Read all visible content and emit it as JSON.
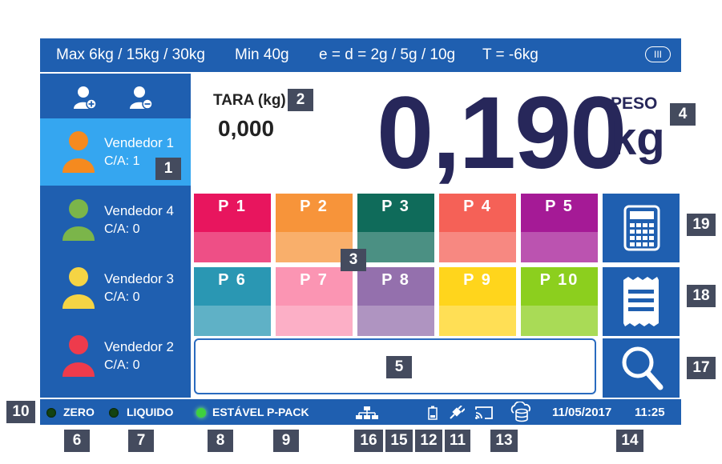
{
  "spec_bar": {
    "max": "Max 6kg / 15kg / 30kg",
    "min": "Min 40g",
    "division": "e = d = 2g / 5g / 10g",
    "tare_limit": "T = -6kg",
    "accuracy_class": "III"
  },
  "sidebar": {
    "add_user_icon": "user-add-icon",
    "remove_user_icon": "user-remove-icon",
    "sellers": [
      {
        "name": "Vendedor 1",
        "ca": "C/A: 1",
        "color": "#f58a1f",
        "active": true
      },
      {
        "name": "Vendedor 4",
        "ca": "C/A: 0",
        "color": "#7bb54a",
        "active": false
      },
      {
        "name": "Vendedor 3",
        "ca": "C/A: 0",
        "color": "#f5d444",
        "active": false
      },
      {
        "name": "Vendedor 2",
        "ca": "C/A: 0",
        "color": "#ee3b4c",
        "active": false
      }
    ]
  },
  "display": {
    "tara_label": "TARA (kg)",
    "tara_value": "0,000",
    "weight": "0,190",
    "peso_label": "PESO",
    "unit": "kg"
  },
  "presets": [
    {
      "label": "P 1",
      "color": "#e8155e"
    },
    {
      "label": "P 2",
      "color": "#f7943a"
    },
    {
      "label": "P 3",
      "color": "#0f6b5a"
    },
    {
      "label": "P 4",
      "color": "#f56157"
    },
    {
      "label": "P 5",
      "color": "#a51a96"
    },
    {
      "label": "P 6",
      "color": "#2a97b3"
    },
    {
      "label": "P 7",
      "color": "#fb95b3"
    },
    {
      "label": "P 8",
      "color": "#9470ad"
    },
    {
      "label": "P 9",
      "color": "#ffd51c"
    },
    {
      "label": "P 10",
      "color": "#8ccf1e"
    }
  ],
  "side_buttons": [
    {
      "name": "calculator-button",
      "icon": "calculator-icon"
    },
    {
      "name": "receipt-button",
      "icon": "receipt-icon"
    },
    {
      "name": "search-button",
      "icon": "search-icon"
    }
  ],
  "status_bar": {
    "zero": "ZERO",
    "liquido": "LIQUIDO",
    "estavel": "ESTÁVEL",
    "ppack": "P-PACK",
    "date": "11/05/2017",
    "time": "11:25",
    "icons": [
      "network-icon",
      "battery-icon",
      "power-plug-icon",
      "cast-icon",
      "cloud-database-icon"
    ]
  },
  "callouts": [
    "1",
    "2",
    "3",
    "4",
    "5",
    "6",
    "7",
    "8",
    "9",
    "10",
    "11",
    "12",
    "13",
    "14",
    "15",
    "16",
    "17",
    "18",
    "19"
  ]
}
